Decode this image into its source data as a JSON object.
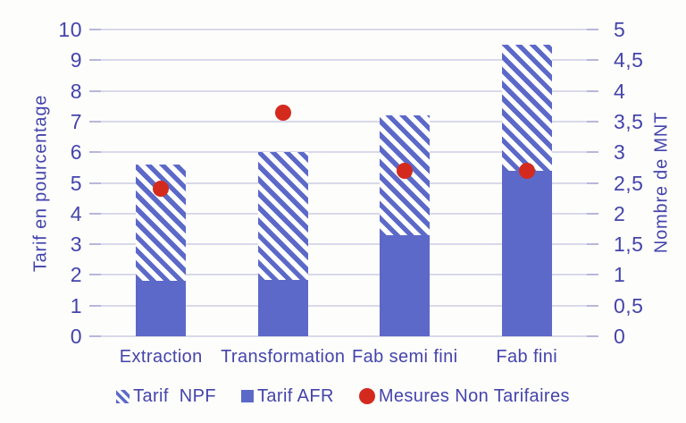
{
  "chart_data": {
    "type": "bar",
    "stacked": true,
    "title": "",
    "categories": [
      "Extraction",
      "Transformation",
      "Fab semi fini",
      "Fab fini"
    ],
    "series": [
      {
        "name": "Tarif AFR",
        "axis": "left",
        "style": "solid",
        "values": [
          1.8,
          1.85,
          3.3,
          5.4
        ]
      },
      {
        "name": "Tarif NPF",
        "axis": "left",
        "style": "hatched",
        "values": [
          3.8,
          4.15,
          3.9,
          4.1
        ],
        "stack_totals": [
          5.6,
          6.0,
          7.2,
          9.5
        ]
      },
      {
        "name": "Mesures Non Tarifaires",
        "axis": "right",
        "style": "point",
        "values": [
          2.4,
          3.65,
          2.7,
          2.7
        ]
      }
    ],
    "left_axis": {
      "title": "Tarif en pourcentage",
      "min": 0,
      "max": 10,
      "step": 1,
      "ticks": [
        "0",
        "1",
        "2",
        "3",
        "4",
        "5",
        "6",
        "7",
        "8",
        "9",
        "10"
      ]
    },
    "right_axis": {
      "title": "Nombre de MNT",
      "min": 0,
      "max": 5,
      "step": 0.5,
      "ticks": [
        "0",
        "0,5",
        "1",
        "1,5",
        "2",
        "2,5",
        "3",
        "3,5",
        "4",
        "4,5",
        "5"
      ]
    },
    "grid": true,
    "legend_position": "bottom"
  },
  "legend": {
    "npf": "Tarif  NPF",
    "afr": "Tarif AFR",
    "mnt": "Mesures Non Tarifaires"
  },
  "colors": {
    "bar_blue": "#5c69c8",
    "axis_text": "#4444ac",
    "gridline": "#d9d9ea",
    "tick": "#b7b7da",
    "dot_red": "#d42a1e",
    "background": "#fdfdfc"
  }
}
